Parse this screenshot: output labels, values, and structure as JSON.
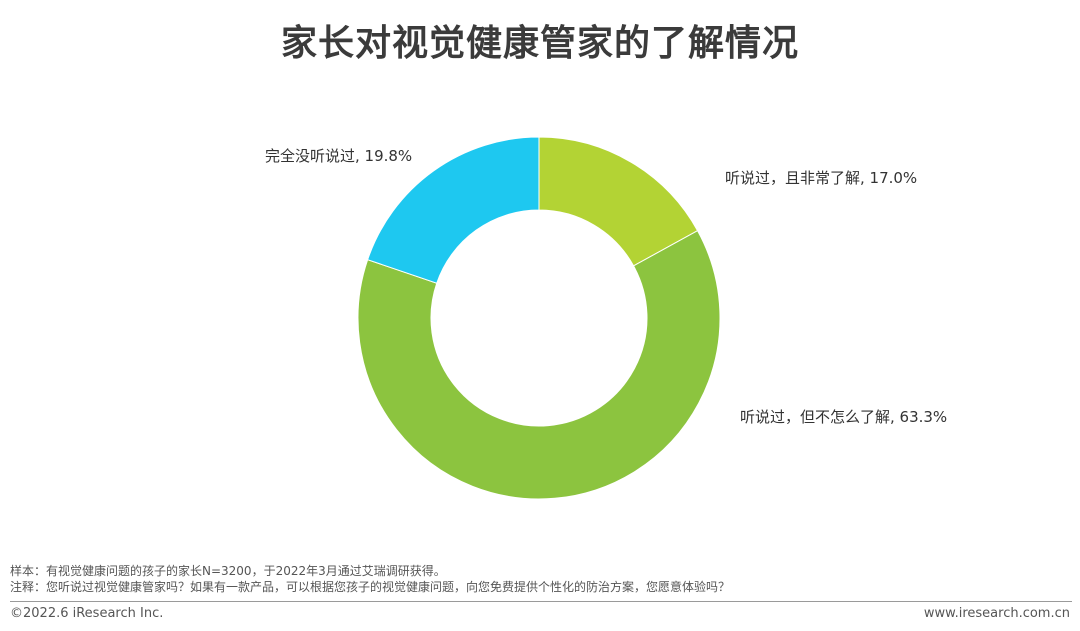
{
  "title": "家长对视觉健康管家的了解情况",
  "chart_data": {
    "type": "pie",
    "donut": true,
    "title": "家长对视觉健康管家的了解情况",
    "slices": [
      {
        "label": "听说过，且非常了解",
        "value": 17.0,
        "display": "听说过，且非常了解, 17.0%",
        "color": "#b3d334"
      },
      {
        "label": "听说过，但不怎么了解",
        "value": 63.3,
        "display": "听说过，但不怎么了解, 63.3%",
        "color": "#8cc43f"
      },
      {
        "label": "完全没听说过",
        "value": 19.8,
        "display": "完全没听说过, 19.8%",
        "color": "#1ec8f0"
      }
    ],
    "start_angle": "12 o'clock",
    "direction": "clockwise",
    "legend": "none"
  },
  "notes": {
    "sample": "样本：有视觉健康问题的孩子的家长N=3200，于2022年3月通过艾瑞调研获得。",
    "remark": "注释：您听说过视觉健康管家吗？如果有一款产品，可以根据您孩子的视觉健康问题，向您免费提供个性化的防治方案，您愿意体验吗？"
  },
  "footer": {
    "copyright": "©2022.6 iResearch Inc.",
    "website": "www.iresearch.com.cn"
  }
}
